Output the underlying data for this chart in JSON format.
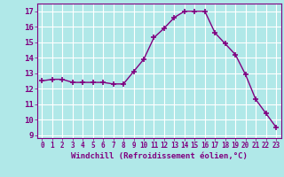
{
  "x": [
    0,
    1,
    2,
    3,
    4,
    5,
    6,
    7,
    8,
    9,
    10,
    11,
    12,
    13,
    14,
    15,
    16,
    17,
    18,
    19,
    20,
    21,
    22,
    23
  ],
  "y": [
    12.5,
    12.6,
    12.6,
    12.4,
    12.4,
    12.4,
    12.4,
    12.3,
    12.3,
    13.1,
    13.9,
    15.3,
    15.9,
    16.6,
    17.0,
    17.0,
    17.0,
    15.6,
    14.9,
    14.2,
    12.9,
    11.3,
    10.4,
    9.5
  ],
  "line_color": "#800080",
  "marker": "+",
  "marker_color": "#800080",
  "bg_color": "#b0e8e8",
  "grid_color": "#ffffff",
  "xlabel": "Windchill (Refroidissement éolien,°C)",
  "xlim": [
    -0.5,
    23.5
  ],
  "ylim": [
    8.8,
    17.5
  ],
  "yticks": [
    9,
    10,
    11,
    12,
    13,
    14,
    15,
    16,
    17
  ],
  "xticks": [
    0,
    1,
    2,
    3,
    4,
    5,
    6,
    7,
    8,
    9,
    10,
    11,
    12,
    13,
    14,
    15,
    16,
    17,
    18,
    19,
    20,
    21,
    22,
    23
  ],
  "tick_color": "#800080",
  "label_color": "#800080",
  "axis_color": "#800080",
  "xtick_fontsize": 5.5,
  "ytick_fontsize": 6.5,
  "xlabel_fontsize": 6.5,
  "font_family": "monospace"
}
